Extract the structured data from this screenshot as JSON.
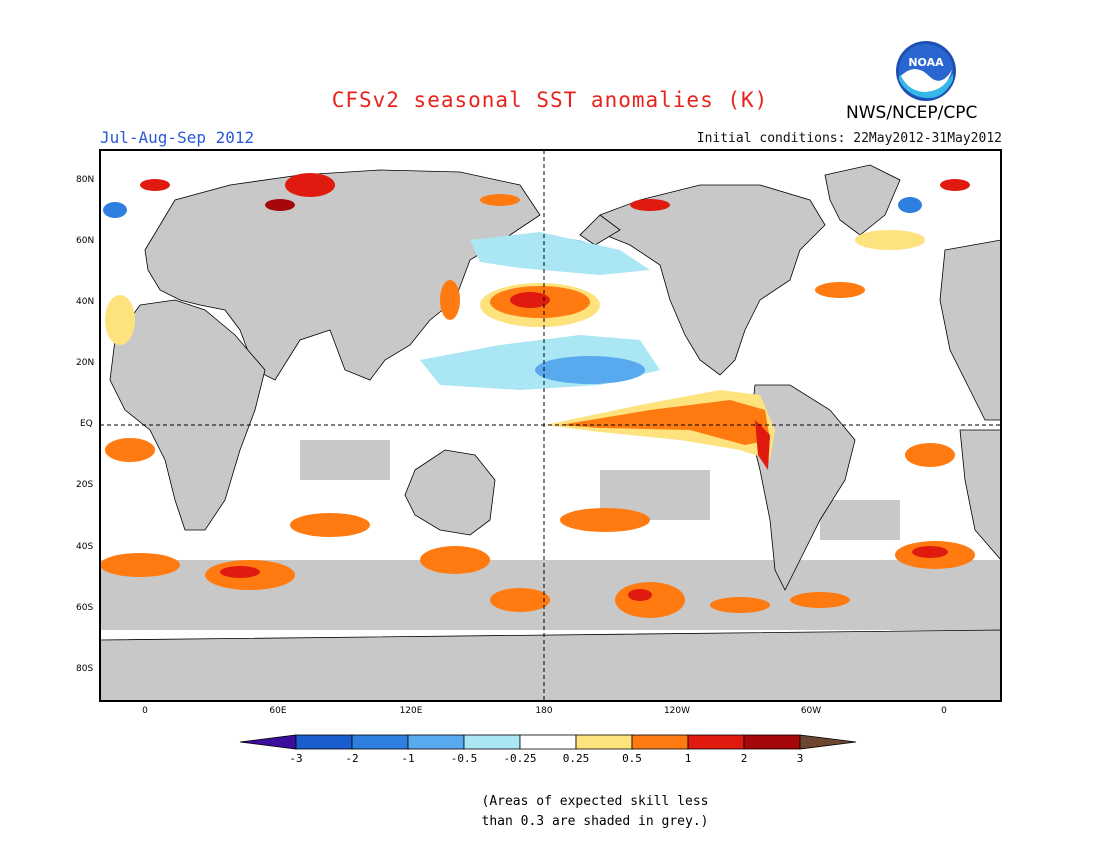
{
  "header": {
    "title": "CFSv2 seasonal SST anomalies (K)",
    "season": "Jul-Aug-Sep 2012",
    "initial_conditions": "Initial conditions: 22May2012-31May2012",
    "agency": "NWS/NCEP/CPC",
    "logo_label": "NOAA"
  },
  "map": {
    "y_ticks": [
      "80N",
      "60N",
      "40N",
      "20N",
      "EQ",
      "20S",
      "40S",
      "60S",
      "80S"
    ],
    "x_ticks": [
      "0",
      "60E",
      "120E",
      "180",
      "120W",
      "60W",
      "0"
    ],
    "land_color": "#c8c8c8",
    "ocean_color": "#ffffff"
  },
  "colorbar": {
    "ticks": [
      "-3",
      "-2",
      "-1",
      "-0.5",
      "-0.25",
      "0.25",
      "0.5",
      "1",
      "2",
      "3"
    ],
    "colors": [
      "#3b0e9e",
      "#1a5dcc",
      "#2e7fe0",
      "#59a9ee",
      "#aae6f4",
      "#ffffff",
      "#fde27e",
      "#ff7a10",
      "#e01a0f",
      "#a50808",
      "#6d4530"
    ]
  },
  "note": {
    "line1": "(Areas of expected skill less",
    "line2": "than 0.3 are shaded in grey.)"
  }
}
